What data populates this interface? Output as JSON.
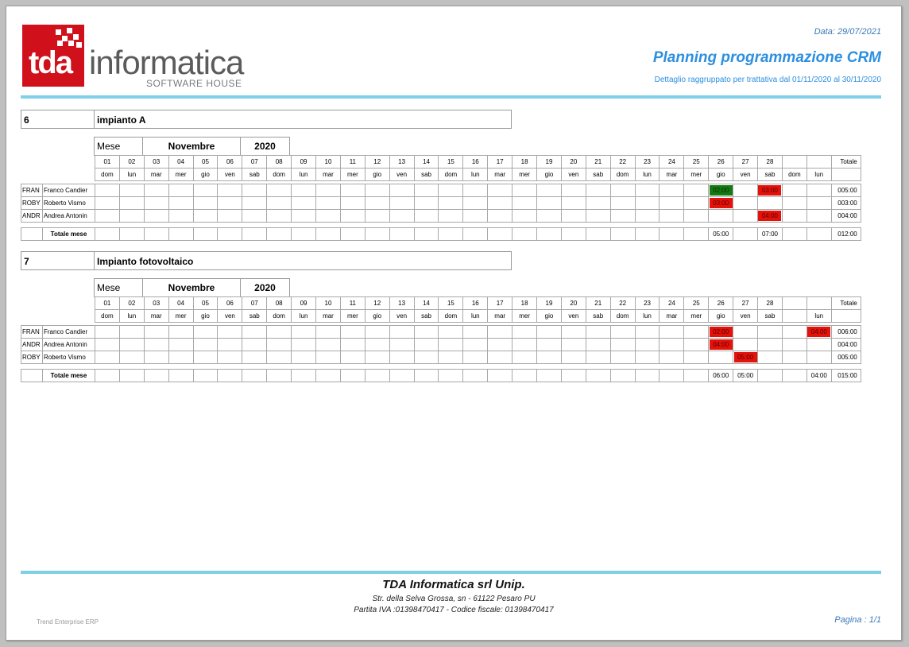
{
  "logo": {
    "mark": "tda",
    "word": "informatica",
    "tag": "SOFTWARE HOUSE"
  },
  "header": {
    "date": "Data: 29/07/2021",
    "title": "Planning programmazione CRM",
    "subtitle": "Dettaglio raggruppato per trattativa dal 01/11/2020 al 30/11/2020"
  },
  "grid": {
    "mese_label": "Mese",
    "month": "Novembre",
    "year": "2020",
    "total_label": "Totale",
    "month_total_label": "Totale mese",
    "days": [
      "01",
      "02",
      "03",
      "04",
      "05",
      "06",
      "07",
      "08",
      "09",
      "10",
      "11",
      "12",
      "13",
      "14",
      "15",
      "16",
      "17",
      "18",
      "19",
      "20",
      "21",
      "22",
      "23",
      "24",
      "25",
      "26",
      "27",
      "28",
      "",
      ""
    ],
    "weekdays": [
      "dom",
      "lun",
      "mar",
      "mer",
      "gio",
      "ven",
      "sab",
      "dom",
      "lun",
      "mar",
      "mer",
      "gio",
      "ven",
      "sab",
      "dom",
      "lun",
      "mar",
      "mer",
      "gio",
      "ven",
      "sab",
      "dom",
      "lun",
      "mar",
      "mer",
      "gio",
      "ven",
      "sab",
      "dom",
      "lun"
    ],
    "weekdays2": [
      "dom",
      "lun",
      "mar",
      "mer",
      "gio",
      "ven",
      "sab",
      "dom",
      "lun",
      "mar",
      "mer",
      "gio",
      "ven",
      "sab",
      "dom",
      "lun",
      "mar",
      "mer",
      "gio",
      "ven",
      "sab",
      "dom",
      "lun",
      "mar",
      "mer",
      "gio",
      "ven",
      "sab",
      "",
      "lun"
    ]
  },
  "sections": [
    {
      "num": "6",
      "name": "impianto A",
      "rows": [
        {
          "code": "FRAN",
          "user": "Franco Candier",
          "total": "005:00",
          "cells": [
            {
              "i": 25,
              "v": "02:00",
              "c": "green"
            },
            {
              "i": 27,
              "v": "03:00",
              "c": "red"
            }
          ]
        },
        {
          "code": "ROBY",
          "user": "Roberto Vismo",
          "total": "003:00",
          "cells": [
            {
              "i": 25,
              "v": "03:00",
              "c": "red"
            }
          ]
        },
        {
          "code": "ANDR",
          "user": "Andrea Antonin",
          "total": "004:00",
          "cells": [
            {
              "i": 27,
              "v": "04:00",
              "c": "red"
            }
          ]
        }
      ],
      "month_totals": [
        {
          "i": 25,
          "v": "05:00"
        },
        {
          "i": 27,
          "v": "07:00"
        }
      ],
      "grand_total": "012:00"
    },
    {
      "num": "7",
      "name": "Impianto fotovoltaico",
      "rows": [
        {
          "code": "FRAN",
          "user": "Franco Candier",
          "total": "006:00",
          "cells": [
            {
              "i": 25,
              "v": "02:00",
              "c": "red"
            },
            {
              "i": 29,
              "v": "04:00",
              "c": "red"
            }
          ]
        },
        {
          "code": "ANDR",
          "user": "Andrea Antonin",
          "total": "004:00",
          "cells": [
            {
              "i": 25,
              "v": "04:00",
              "c": "red"
            }
          ]
        },
        {
          "code": "ROBY",
          "user": "Roberto Vismo",
          "total": "005:00",
          "cells": [
            {
              "i": 26,
              "v": "05:00",
              "c": "red"
            }
          ]
        }
      ],
      "month_totals": [
        {
          "i": 25,
          "v": "06:00"
        },
        {
          "i": 26,
          "v": "05:00"
        },
        {
          "i": 29,
          "v": "04:00"
        }
      ],
      "grand_total": "015:00"
    }
  ],
  "footer": {
    "company": "TDA Informatica srl Unip.",
    "address": "Str. della Selva Grossa, sn - 61122 Pesaro PU",
    "vat": "Partita IVA :01398470417 - Codice fiscale: 01398470417",
    "erp": "Trend Enterprise ERP",
    "page": "Pagina : 1/1"
  }
}
